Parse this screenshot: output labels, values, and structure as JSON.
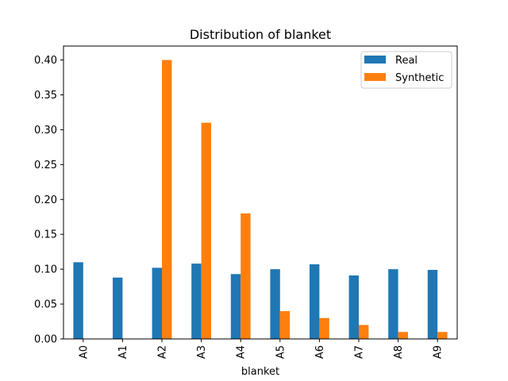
{
  "chart_data": {
    "type": "bar",
    "title": "Distribution of blanket",
    "xlabel": "blanket",
    "ylabel": "",
    "categories": [
      "A0",
      "A1",
      "A2",
      "A3",
      "A4",
      "A5",
      "A6",
      "A7",
      "A8",
      "A9"
    ],
    "series": [
      {
        "name": "Real",
        "color": "#1f77b4",
        "values": [
          0.11,
          0.088,
          0.102,
          0.108,
          0.093,
          0.1,
          0.107,
          0.091,
          0.1,
          0.099
        ]
      },
      {
        "name": "Synthetic",
        "color": "#ff7f0e",
        "values": [
          0.0,
          0.0,
          0.4,
          0.31,
          0.18,
          0.04,
          0.03,
          0.02,
          0.01,
          0.01
        ]
      }
    ],
    "ylim": [
      0,
      0.42
    ],
    "yticks": [
      "0.00",
      "0.05",
      "0.10",
      "0.15",
      "0.20",
      "0.25",
      "0.30",
      "0.35",
      "0.40"
    ],
    "grid": false,
    "legend_position": "top-right"
  }
}
